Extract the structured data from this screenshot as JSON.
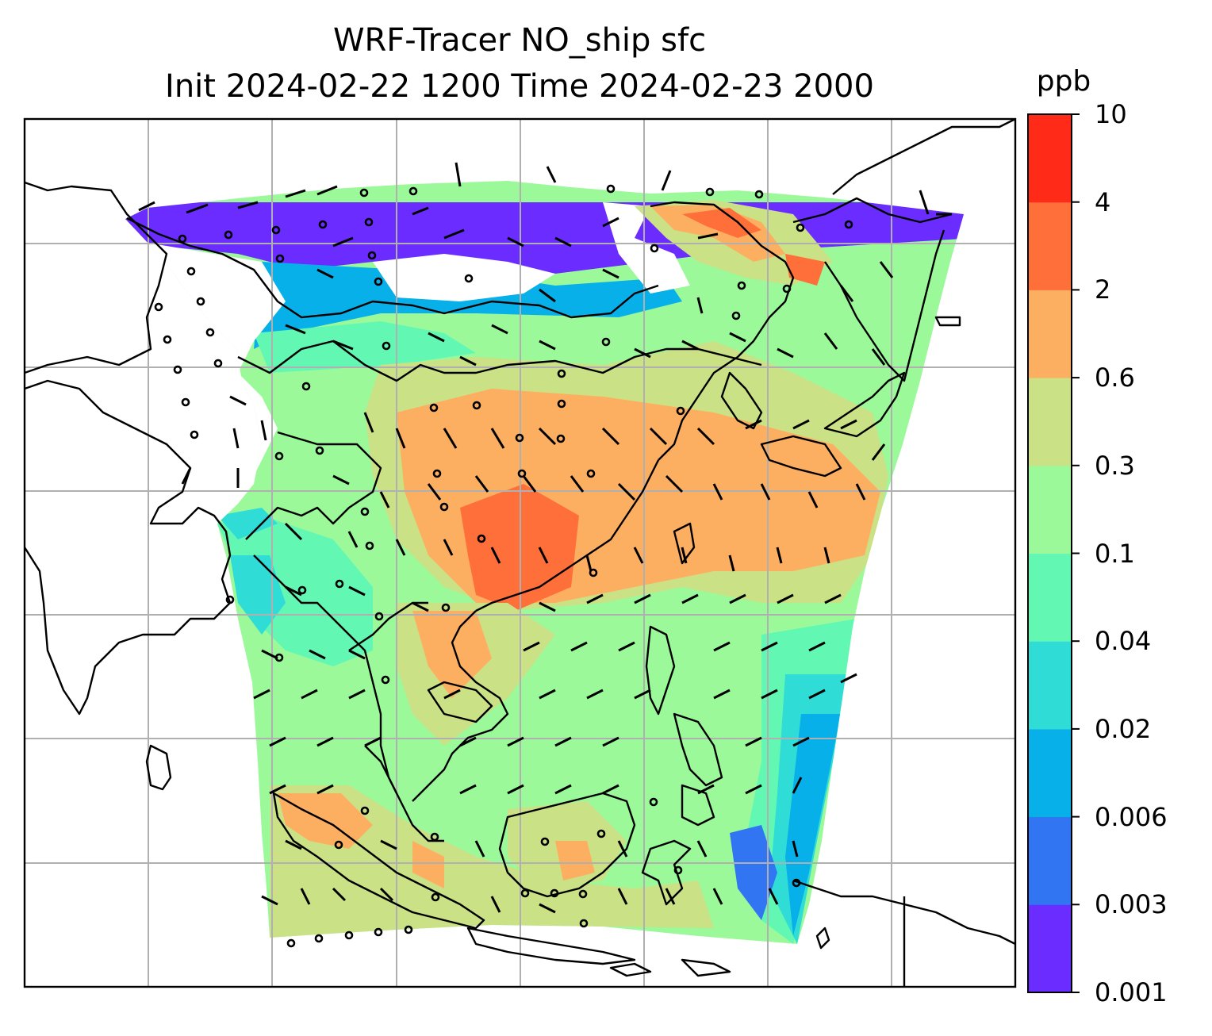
{
  "title": {
    "line1": "WRF-Tracer NO_ship sfc",
    "line2": "Init 2024-02-22 1200 Time 2024-02-23 2000"
  },
  "colorbar": {
    "unit": "ppb",
    "ticks": [
      "0.001",
      "0.003",
      "0.006",
      "0.02",
      "0.04",
      "0.1",
      "0.3",
      "0.6",
      "2",
      "4",
      "10"
    ],
    "colors": [
      "#6a2cff",
      "#3175f3",
      "#08b0ea",
      "#2fdcd6",
      "#62f8b4",
      "#9bf99a",
      "#cbe186",
      "#fdaf61",
      "#ff6f3a",
      "#ff2b18"
    ]
  },
  "map": {
    "field": "NO_ship",
    "level": "sfc",
    "gridlines": true,
    "coastlines": true,
    "wind_barbs": true
  }
}
